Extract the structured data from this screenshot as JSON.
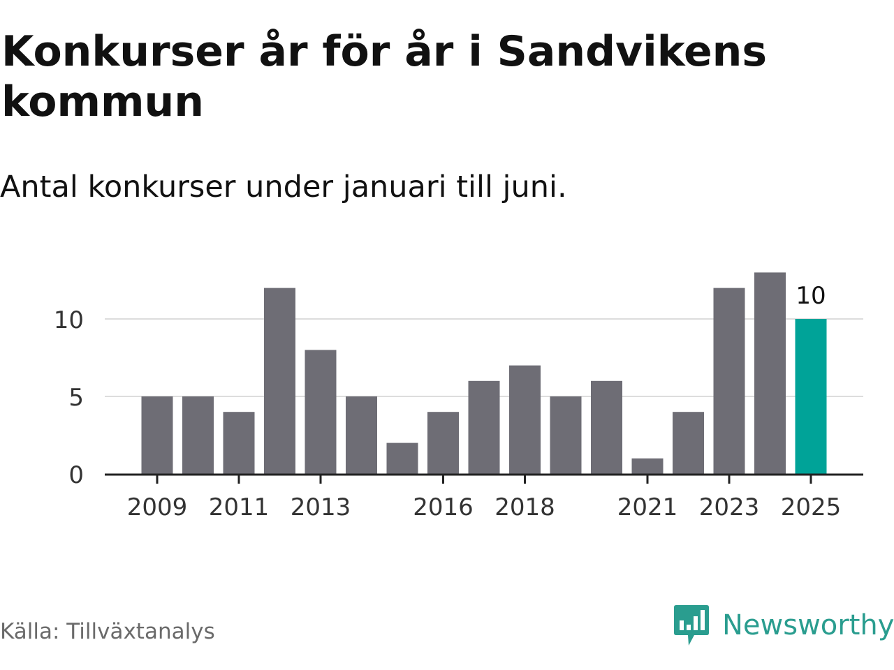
{
  "title": "Konkurser år för år i Sandvikens kommun",
  "subtitle": "Antal konkurser under januari till juni.",
  "source": "Källa: Tillväxtanalys",
  "brand": {
    "name": "Newsworthy",
    "icon": "newsworthy-logo-icon",
    "color": "#2a9d8f"
  },
  "colors": {
    "bar": "#6e6d75",
    "highlight": "#00a398",
    "grid": "#dddddd",
    "axis": "#222222"
  },
  "chart_data": {
    "type": "bar",
    "title": "Konkurser år för år i Sandvikens kommun",
    "subtitle": "Antal konkurser under januari till juni.",
    "xlabel": "",
    "ylabel": "",
    "categories": [
      "2009",
      "2010",
      "2011",
      "2012",
      "2013",
      "2014",
      "2015",
      "2016",
      "2017",
      "2018",
      "2019",
      "2020",
      "2021",
      "2022",
      "2023",
      "2024",
      "2025"
    ],
    "values": [
      5,
      5,
      4,
      12,
      8,
      5,
      2,
      4,
      6,
      7,
      5,
      6,
      1,
      4,
      12,
      13,
      10
    ],
    "highlight_index": 16,
    "highlight_label": "10",
    "x_tick_labels": [
      "2009",
      "2011",
      "2013",
      "2016",
      "2018",
      "2021",
      "2023",
      "2025"
    ],
    "y_ticks": [
      0,
      5,
      10
    ],
    "ylim": [
      0,
      13
    ],
    "grid": true,
    "legend": "none"
  }
}
